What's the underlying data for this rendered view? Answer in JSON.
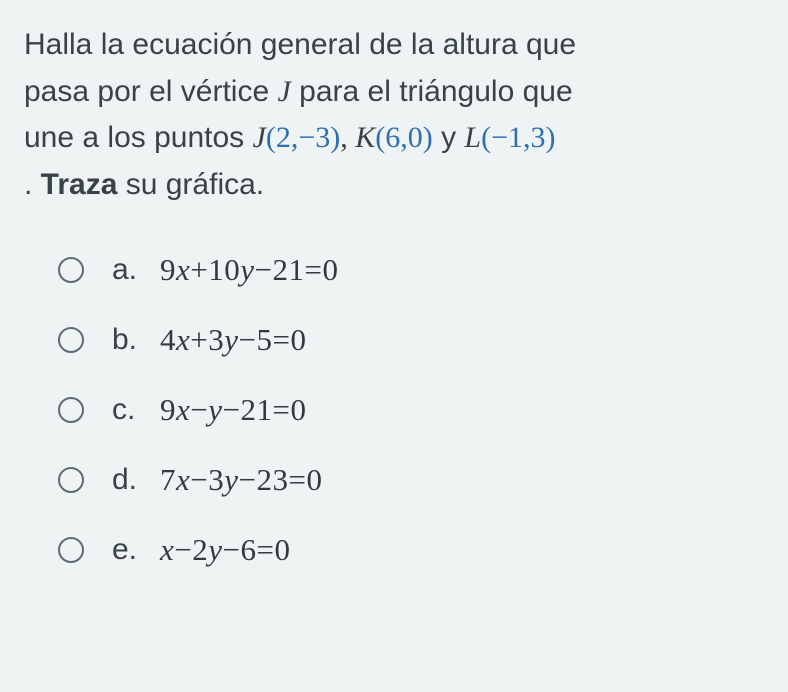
{
  "question": {
    "line1_a": "Halla la ecuación general de la altura que",
    "line2_a": "pasa por el vértice ",
    "line2_J": "J",
    "line2_b": " para el triángulo que",
    "line3_a": "une a los puntos ",
    "ptJ_name": "J",
    "ptJ_val": "(2,−3)",
    "sep1": ", ",
    "ptK_name": "K",
    "ptK_val": "(6,0)",
    "sep2": " y ",
    "ptL_name": "L",
    "ptL_val": "(−1,3)",
    "line4_a": ". ",
    "line4_bold": "Traza",
    "line4_b": " su gráfica."
  },
  "options": [
    {
      "letter": "a.",
      "coef1": "9",
      "var1": "x",
      "op1": "+",
      "coef2": "10",
      "var2": "y",
      "op2": "−",
      "const": "21",
      "eq": "=0"
    },
    {
      "letter": "b.",
      "coef1": "4",
      "var1": "x",
      "op1": "+",
      "coef2": "3",
      "var2": "y",
      "op2": "−",
      "const": "5",
      "eq": "=0"
    },
    {
      "letter": "c.",
      "coef1": "9",
      "var1": "x",
      "op1": "−",
      "coef2": "",
      "var2": "y",
      "op2": "−",
      "const": "21",
      "eq": "=0"
    },
    {
      "letter": "d.",
      "coef1": "7",
      "var1": "x",
      "op1": "−",
      "coef2": "3",
      "var2": "y",
      "op2": "−",
      "const": "23",
      "eq": "=0"
    },
    {
      "letter": "e.",
      "coef1": "",
      "var1": "x",
      "op1": "−",
      "coef2": "2",
      "var2": "y",
      "op2": "−",
      "const": "6",
      "eq": "=0"
    }
  ],
  "colors": {
    "background": "#eef3f4",
    "text": "#3a4249",
    "blue": "#2f6fb0",
    "radio_border": "#5f6b74"
  }
}
